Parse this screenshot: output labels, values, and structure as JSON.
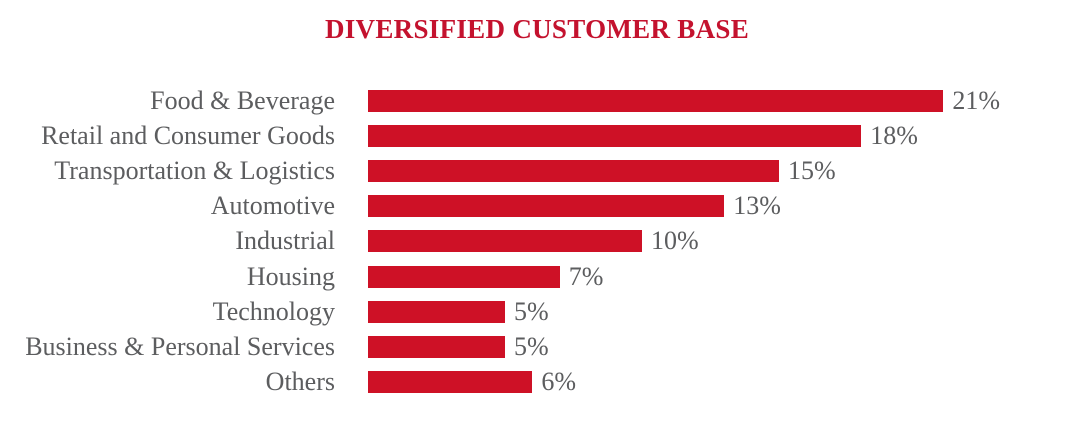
{
  "page": {
    "background": "#ffffff"
  },
  "chart_data": {
    "type": "bar",
    "orientation": "horizontal",
    "title": "DIVERSIFIED CUSTOMER BASE",
    "categories": [
      "Food & Beverage",
      "Retail and Consumer Goods",
      "Transportation & Logistics",
      "Automotive",
      "Industrial",
      "Housing",
      "Technology",
      "Business & Personal Services",
      "Others"
    ],
    "values": [
      21,
      18,
      15,
      13,
      10,
      7,
      5,
      5,
      6
    ],
    "value_labels": [
      "21%",
      "18%",
      "15%",
      "13%",
      "10%",
      "7%",
      "5%",
      "5%",
      "6%"
    ],
    "xlabel": "",
    "ylabel": "",
    "xlim": [
      0,
      21
    ],
    "grid": false,
    "legend": false,
    "colors": {
      "bar": "#CE1126",
      "title": "#C4122E",
      "label": "#5C5D5F"
    }
  }
}
